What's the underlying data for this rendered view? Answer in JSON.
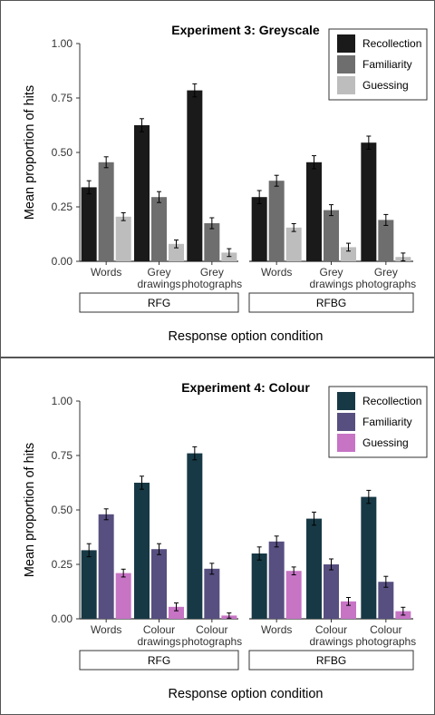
{
  "chart_data": [
    {
      "type": "bar",
      "title": "Experiment 3: Greyscale",
      "xlabel": "Response option condition",
      "ylabel": "Mean proportion of hits",
      "ylim": [
        0,
        1
      ],
      "yticks": [
        "0.00",
        "0.25",
        "0.50",
        "0.75",
        "1.00"
      ],
      "yticks_values": [
        0,
        0.25,
        0.5,
        0.75,
        1.0
      ],
      "legend": "top-right",
      "grid": false,
      "facets": [
        {
          "label": "RFG",
          "categories": [
            [
              "Words"
            ],
            [
              "Grey",
              "drawings"
            ],
            [
              "Grey",
              "photographs"
            ]
          ],
          "series": [
            {
              "name": "Recollection",
              "values": [
                0.34,
                0.625,
                0.785
              ],
              "errors": [
                0.03,
                0.03,
                0.03
              ]
            },
            {
              "name": "Familiarity",
              "values": [
                0.455,
                0.295,
                0.175
              ],
              "errors": [
                0.025,
                0.025,
                0.025
              ]
            },
            {
              "name": "Guessing",
              "values": [
                0.205,
                0.08,
                0.04
              ],
              "errors": [
                0.018,
                0.018,
                0.018
              ]
            }
          ]
        },
        {
          "label": "RFBG",
          "categories": [
            [
              "Words"
            ],
            [
              "Grey",
              "drawings"
            ],
            [
              "Grey",
              "photographs"
            ]
          ],
          "series": [
            {
              "name": "Recollection",
              "values": [
                0.295,
                0.455,
                0.545
              ],
              "errors": [
                0.03,
                0.03,
                0.03
              ]
            },
            {
              "name": "Familiarity",
              "values": [
                0.37,
                0.235,
                0.19
              ],
              "errors": [
                0.025,
                0.025,
                0.025
              ]
            },
            {
              "name": "Guessing",
              "values": [
                0.155,
                0.065,
                0.02
              ],
              "errors": [
                0.018,
                0.018,
                0.018
              ]
            }
          ]
        }
      ],
      "colors": [
        "#1a1a1a",
        "#6e6e6e",
        "#bdbdbd"
      ]
    },
    {
      "type": "bar",
      "title": "Experiment 4: Colour",
      "xlabel": "Response option condition",
      "ylabel": "Mean proportion of hits",
      "ylim": [
        0,
        1
      ],
      "yticks": [
        "0.00",
        "0.25",
        "0.50",
        "0.75",
        "1.00"
      ],
      "yticks_values": [
        0,
        0.25,
        0.5,
        0.75,
        1.0
      ],
      "legend": "top-right",
      "grid": false,
      "facets": [
        {
          "label": "RFG",
          "categories": [
            [
              "Words"
            ],
            [
              "Colour",
              "drawings"
            ],
            [
              "Colour",
              "photographs"
            ]
          ],
          "series": [
            {
              "name": "Recollection",
              "values": [
                0.315,
                0.625,
                0.76
              ],
              "errors": [
                0.03,
                0.03,
                0.03
              ]
            },
            {
              "name": "Familiarity",
              "values": [
                0.48,
                0.32,
                0.23
              ],
              "errors": [
                0.025,
                0.025,
                0.025
              ]
            },
            {
              "name": "Guessing",
              "values": [
                0.21,
                0.055,
                0.015
              ],
              "errors": [
                0.018,
                0.018,
                0.012
              ]
            }
          ]
        },
        {
          "label": "RFBG",
          "categories": [
            [
              "Words"
            ],
            [
              "Colour",
              "drawings"
            ],
            [
              "Colour",
              "photographs"
            ]
          ],
          "series": [
            {
              "name": "Recollection",
              "values": [
                0.3,
                0.46,
                0.56
              ],
              "errors": [
                0.03,
                0.03,
                0.03
              ]
            },
            {
              "name": "Familiarity",
              "values": [
                0.355,
                0.25,
                0.17
              ],
              "errors": [
                0.025,
                0.025,
                0.025
              ]
            },
            {
              "name": "Guessing",
              "values": [
                0.22,
                0.08,
                0.035
              ],
              "errors": [
                0.018,
                0.018,
                0.018
              ]
            }
          ]
        }
      ],
      "colors": [
        "#173945",
        "#574f80",
        "#c774c5"
      ]
    }
  ]
}
